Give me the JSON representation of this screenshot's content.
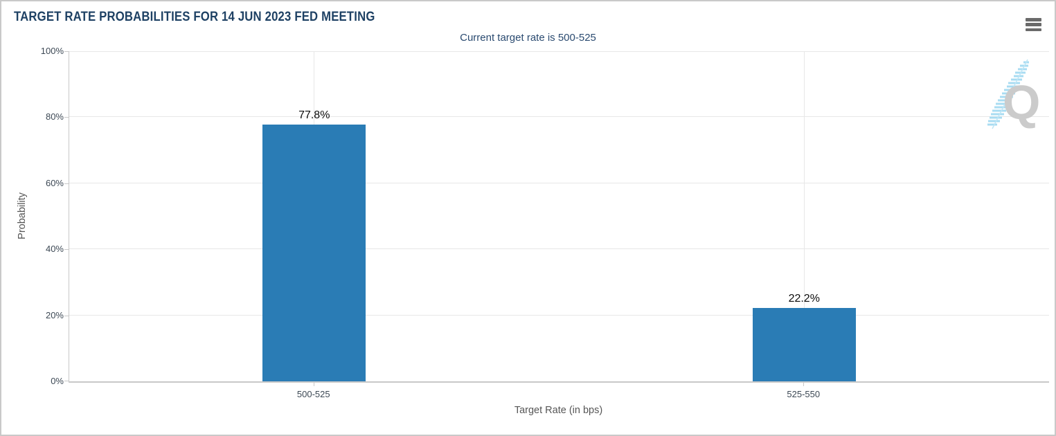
{
  "header": {
    "title": "TARGET RATE PROBABILITIES FOR 14 JUN 2023 FED MEETING",
    "menu_icon": "hamburger-menu-icon"
  },
  "subtitle": "Current target rate is 500-525",
  "watermark": {
    "letter": "Q"
  },
  "colors": {
    "bar": "#2a7cb5",
    "title": "#1e4164",
    "subtitle": "#2a4a70",
    "grid": "#e7e7e7",
    "axis": "#c8c8c8",
    "tick_label": "#3c4854",
    "axis_title": "#555555",
    "value_label": "#0a0a0a",
    "menu_icon": "#6a6a6a",
    "watermark_gray": "#cbcbcb",
    "watermark_blue": "#a9dcf2"
  },
  "chart_data": {
    "type": "bar",
    "title": "TARGET RATE PROBABILITIES FOR 14 JUN 2023 FED MEETING",
    "subtitle": "Current target rate is 500-525",
    "categories": [
      "500-525",
      "525-550"
    ],
    "values": [
      77.8,
      22.2
    ],
    "value_labels": [
      "77.8%",
      "22.2%"
    ],
    "xlabel": "Target Rate (in bps)",
    "ylabel": "Probability",
    "ylim": [
      0,
      100
    ],
    "yticks": [
      0,
      20,
      40,
      60,
      80,
      100
    ],
    "ytick_labels": [
      "0%",
      "20%",
      "40%",
      "60%",
      "80%",
      "100%"
    ],
    "grid": true,
    "legend": false
  }
}
